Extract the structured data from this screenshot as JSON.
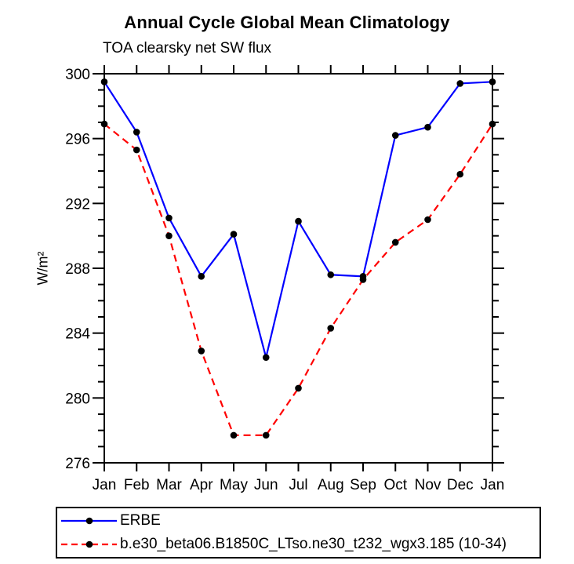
{
  "header": {
    "title": "Annual Cycle Global Mean Climatology",
    "subtitle": "TOA clearsky net SW flux"
  },
  "axes": {
    "ylabel": "W/m²"
  },
  "chart_data": {
    "type": "line",
    "title": "Annual Cycle Global Mean Climatology",
    "subtitle": "TOA clearsky net SW flux",
    "xlabel": "",
    "ylabel": "W/m²",
    "categories": [
      "Jan",
      "Feb",
      "Mar",
      "Apr",
      "May",
      "Jun",
      "Jul",
      "Aug",
      "Sep",
      "Oct",
      "Nov",
      "Dec",
      "Jan"
    ],
    "series": [
      {
        "name": "ERBE",
        "color": "#0000ff",
        "line_style": "solid",
        "marker": "circle",
        "marker_color": "#000000",
        "values": [
          299.5,
          296.4,
          291.1,
          287.5,
          290.1,
          282.5,
          290.9,
          287.6,
          287.5,
          296.2,
          296.7,
          299.4,
          299.5
        ]
      },
      {
        "name": "b.e30_beta06.B1850C_LTso.ne30_t232_wgx3.185 (10-34)",
        "color": "#ff0000",
        "line_style": "dashed",
        "marker": "circle",
        "marker_color": "#000000",
        "values": [
          296.9,
          295.3,
          290.0,
          282.9,
          277.7,
          277.7,
          280.6,
          284.3,
          287.3,
          289.6,
          291.0,
          293.8,
          296.9
        ]
      }
    ],
    "ylim": [
      276,
      300
    ],
    "ytick_major": 4,
    "ytick_minor": 1,
    "grid": false,
    "legend_position": "bottom-left-outside"
  }
}
